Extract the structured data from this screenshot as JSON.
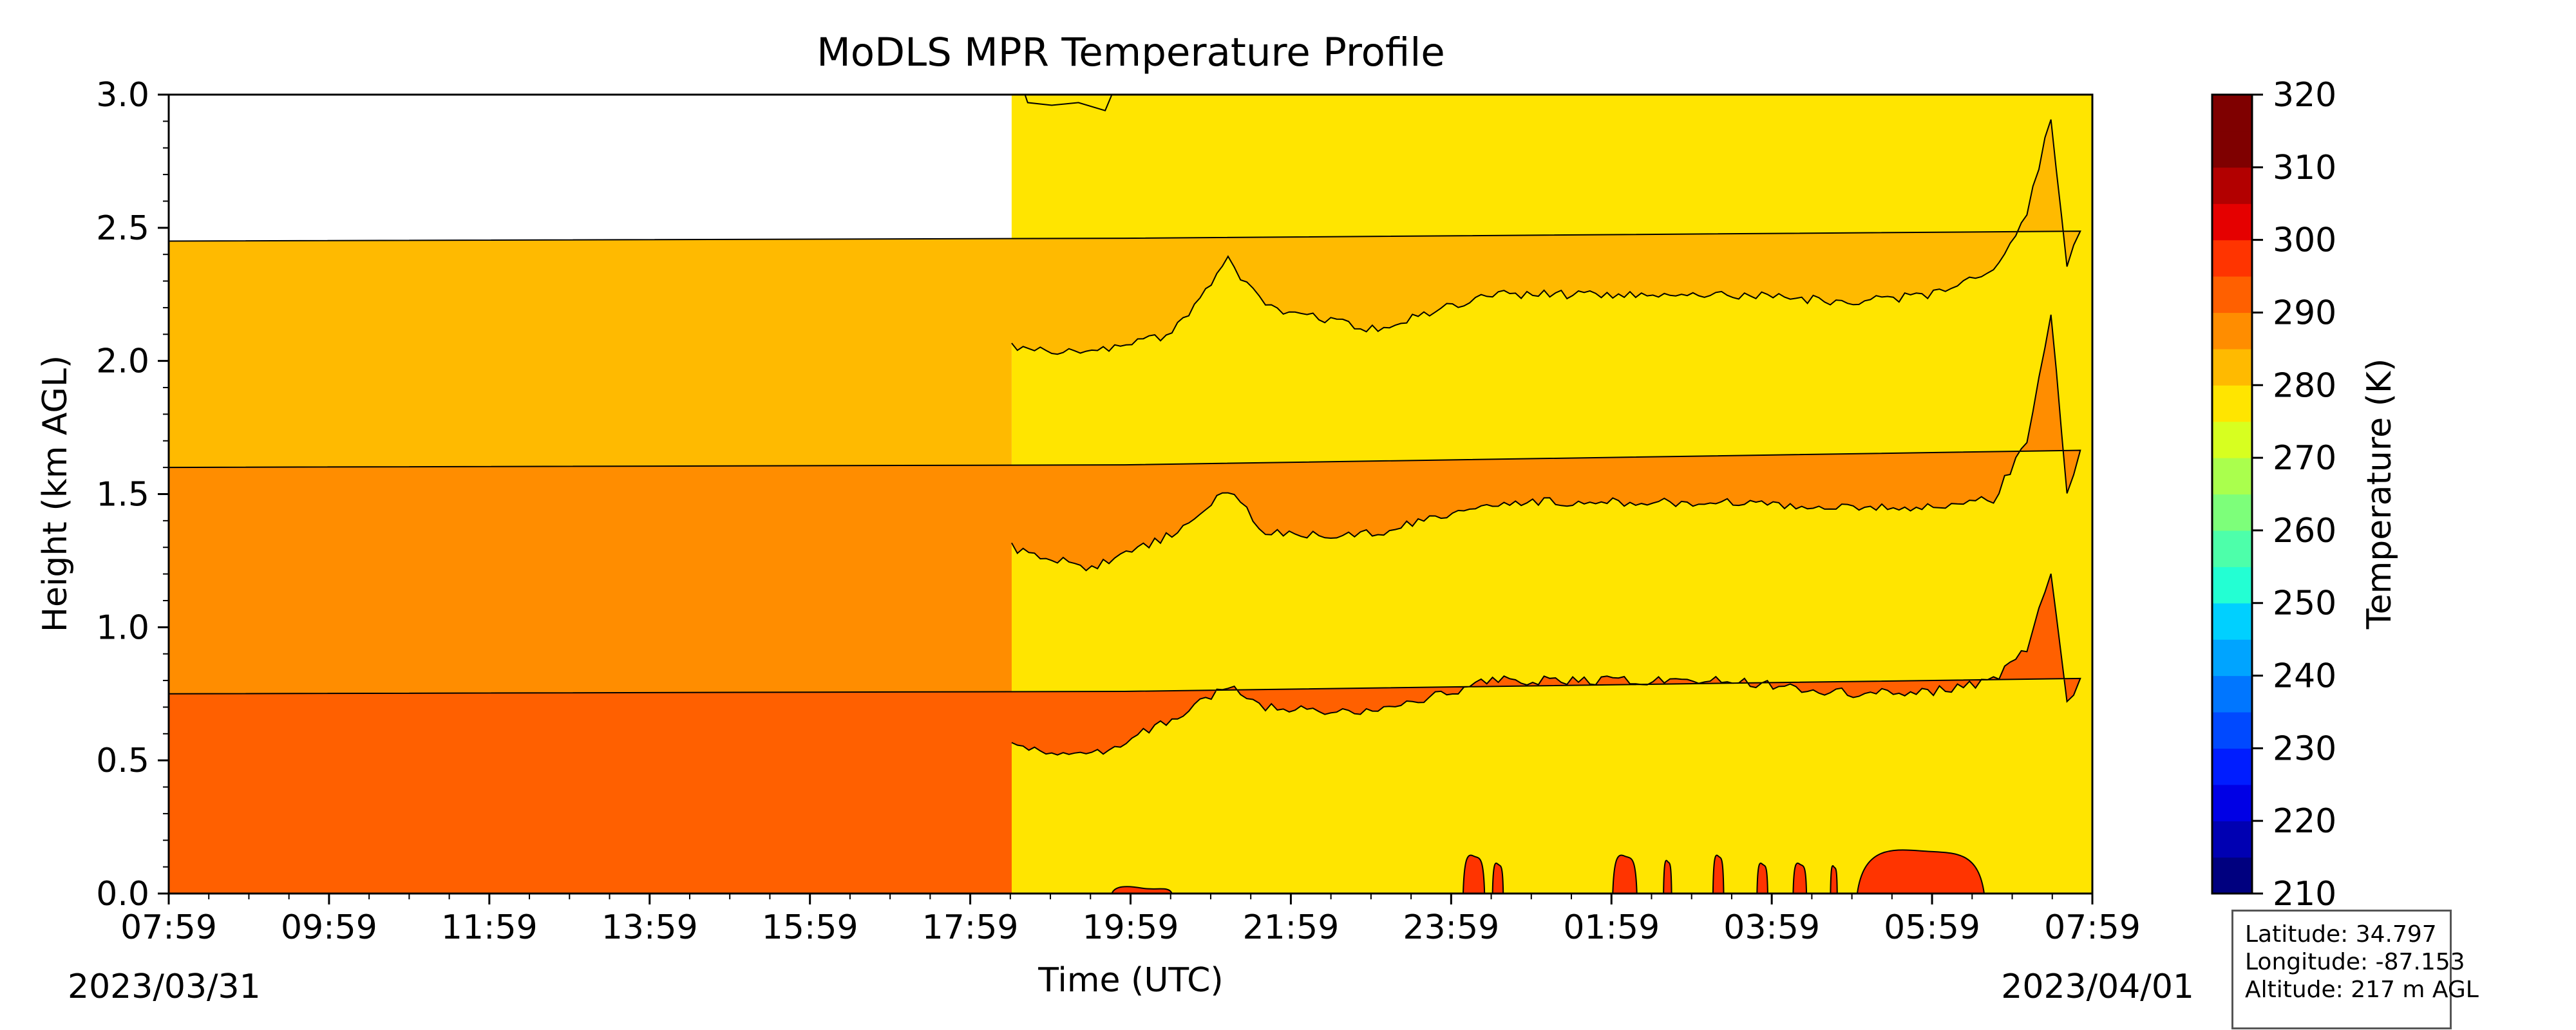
{
  "chart_data": {
    "type": "heatmap",
    "subtype": "filled-contour time-height",
    "title": "MoDLS MPR Temperature Profile",
    "xlabel": "Time (UTC)",
    "ylabel": "Height (km AGL)",
    "x_ticks": [
      "07:59",
      "09:59",
      "11:59",
      "13:59",
      "15:59",
      "17:59",
      "19:59",
      "21:59",
      "23:59",
      "01:59",
      "03:59",
      "05:59",
      "07:59"
    ],
    "start_date": "2023/03/31",
    "end_date": "2023/04/01",
    "xlim": [
      "2023-03-31 07:59",
      "2023-04-01 07:59"
    ],
    "y_ticks": [
      "0.0",
      "0.5",
      "1.0",
      "1.5",
      "2.0",
      "2.5",
      "3.0"
    ],
    "ylim": [
      0,
      3
    ],
    "data_start": "2023-03-31 18:30",
    "grid": false,
    "colorbar": {
      "label": "Temperature (K)",
      "ticks": [
        "210",
        "220",
        "230",
        "240",
        "250",
        "260",
        "270",
        "280",
        "290",
        "300",
        "310",
        "320"
      ],
      "range": [
        210,
        320
      ],
      "step": 5,
      "colors": [
        "#00007f",
        "#0000b2",
        "#0000e5",
        "#001dff",
        "#0049ff",
        "#0076ff",
        "#00a4ff",
        "#00d0ff",
        "#23ffd3",
        "#4dffaa",
        "#7dff7a",
        "#aaff4d",
        "#d7ff20",
        "#ffe500",
        "#ffba00",
        "#ff8d00",
        "#ff6000",
        "#ff3400",
        "#e50000",
        "#b20000",
        "#7f0000",
        "#7f0000"
      ]
    },
    "bands_present_K": [
      [
        275,
        280
      ],
      [
        280,
        285
      ],
      [
        285,
        290
      ],
      [
        290,
        295
      ],
      [
        295,
        300
      ]
    ],
    "isotherms": [
      {
        "boundary_K": 280,
        "points": [
          [
            "18:30",
            2.05
          ],
          [
            "19:30",
            2.03
          ],
          [
            "20:30",
            2.1
          ],
          [
            "21:12",
            2.38
          ],
          [
            "21:40",
            2.2
          ],
          [
            "23:00",
            2.12
          ],
          [
            "00:30",
            2.25
          ],
          [
            "02:00",
            2.25
          ],
          [
            "03:30",
            2.25
          ],
          [
            "05:00",
            2.22
          ],
          [
            "06:00",
            2.25
          ],
          [
            "06:45",
            2.35
          ],
          [
            "07:10",
            2.55
          ],
          [
            "07:28",
            2.92
          ],
          [
            "07:40",
            2.35
          ],
          [
            "07:50",
            2.5
          ],
          [
            "07:59",
            2.45
          ]
        ]
      },
      {
        "boundary_K": 285,
        "points": [
          [
            "18:30",
            1.3
          ],
          [
            "19:30",
            1.22
          ],
          [
            "20:30",
            1.35
          ],
          [
            "21:12",
            1.52
          ],
          [
            "21:40",
            1.35
          ],
          [
            "23:00",
            1.35
          ],
          [
            "00:30",
            1.47
          ],
          [
            "02:00",
            1.47
          ],
          [
            "03:30",
            1.47
          ],
          [
            "05:00",
            1.45
          ],
          [
            "06:00",
            1.45
          ],
          [
            "06:45",
            1.48
          ],
          [
            "07:10",
            1.7
          ],
          [
            "07:28",
            2.18
          ],
          [
            "07:40",
            1.5
          ],
          [
            "07:50",
            1.65
          ],
          [
            "07:59",
            1.6
          ]
        ]
      },
      {
        "boundary_K": 290,
        "points": [
          [
            "18:30",
            0.55
          ],
          [
            "19:30",
            0.52
          ],
          [
            "20:30",
            0.65
          ],
          [
            "21:12",
            0.78
          ],
          [
            "21:40",
            0.7
          ],
          [
            "23:00",
            0.68
          ],
          [
            "00:30",
            0.8
          ],
          [
            "02:00",
            0.8
          ],
          [
            "03:30",
            0.8
          ],
          [
            "05:00",
            0.75
          ],
          [
            "06:00",
            0.76
          ],
          [
            "06:45",
            0.8
          ],
          [
            "07:10",
            0.92
          ],
          [
            "07:28",
            1.2
          ],
          [
            "07:40",
            0.72
          ],
          [
            "07:50",
            0.8
          ],
          [
            "07:59",
            0.75
          ]
        ]
      }
    ],
    "top_cooler_patch": {
      "range_K": [
        275,
        280
      ],
      "points": [
        [
          "18:40",
          3.0
        ],
        [
          "18:42",
          2.97
        ],
        [
          "19:00",
          2.96
        ],
        [
          "19:20",
          2.97
        ],
        [
          "19:40",
          2.94
        ],
        [
          "19:45",
          3.0
        ]
      ]
    },
    "surface_warm_patches": {
      "range_K": [
        295,
        300
      ],
      "patches": [
        [
          "19:45",
          "20:30",
          0.03
        ],
        [
          "00:08",
          "00:24",
          0.15
        ],
        [
          "00:30",
          "00:38",
          0.12
        ],
        [
          "02:00",
          "02:18",
          0.15
        ],
        [
          "02:38",
          "02:44",
          0.13
        ],
        [
          "03:15",
          "03:23",
          0.15
        ],
        [
          "03:48",
          "03:56",
          0.12
        ],
        [
          "04:15",
          "04:25",
          0.12
        ],
        [
          "04:43",
          "04:48",
          0.11
        ],
        [
          "05:03",
          "06:38",
          0.17
        ]
      ]
    },
    "info_box": {
      "latitude": "Latitude: 34.797",
      "longitude": "Longitude: -87.153",
      "altitude": "Altitude: 217 m AGL"
    }
  }
}
